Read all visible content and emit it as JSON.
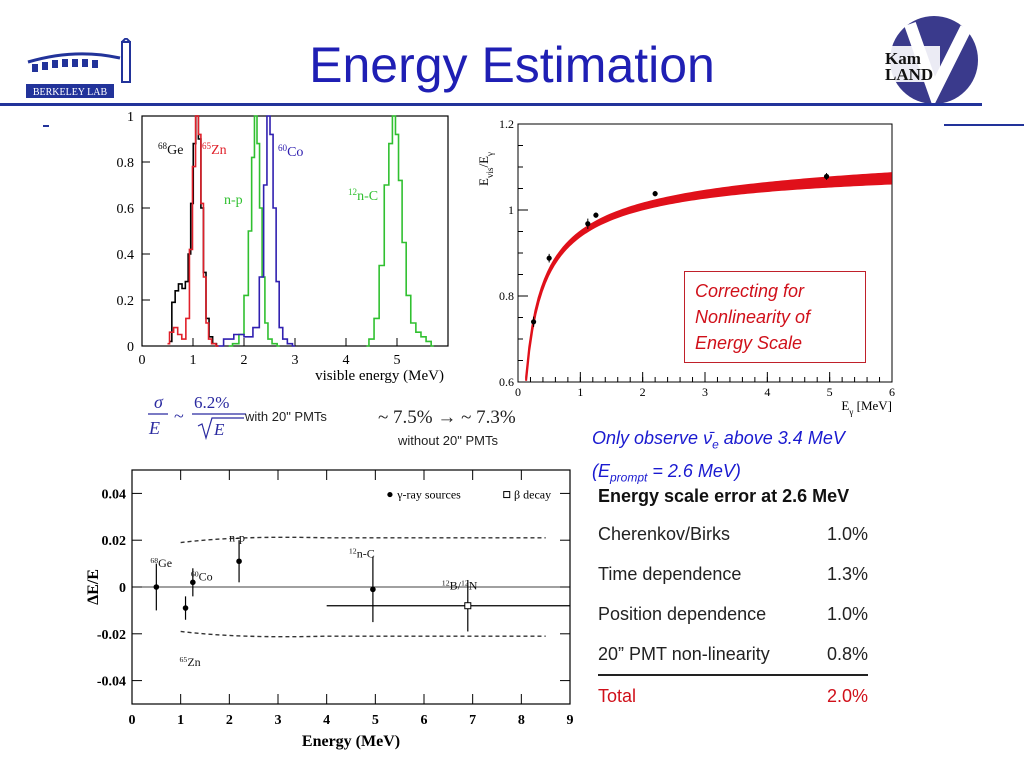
{
  "slide": {
    "title": "Energy Estimation",
    "logo_left_text": "BERKELEY LAB",
    "logo_right_line1": "Kam",
    "logo_right_line2": "LAND"
  },
  "chart_data": [
    {
      "type": "line",
      "xlabel": "visible energy (MeV)",
      "ylabel": "",
      "xlim": [
        0,
        6
      ],
      "ylim": [
        0,
        1
      ],
      "x_ticks": [
        "0",
        "1",
        "2",
        "3",
        "4",
        "5"
      ],
      "y_ticks": [
        "0",
        "0.2",
        "0.4",
        "0.6",
        "0.8",
        "1"
      ],
      "series": [
        {
          "name": "68Ge",
          "label_main": "Ge",
          "label_sup": "68",
          "color": "#000000",
          "x": [
            0.55,
            0.62,
            0.68,
            0.75,
            0.82,
            0.88,
            0.93,
            0.98,
            1.03,
            1.08,
            1.13,
            1.18,
            1.23,
            1.28,
            1.35,
            1.42,
            1.5
          ],
          "y": [
            0.02,
            0.19,
            0.24,
            0.27,
            0.25,
            0.28,
            0.4,
            0.62,
            0.88,
            1.0,
            0.9,
            0.6,
            0.32,
            0.12,
            0.04,
            0.01,
            0.0
          ]
        },
        {
          "name": "65Zn",
          "label_main": "Zn",
          "label_sup": "65",
          "color": "#e0202a",
          "x": [
            0.5,
            0.58,
            0.66,
            0.74,
            0.82,
            0.9,
            0.96,
            1.02,
            1.08,
            1.13,
            1.18,
            1.23,
            1.28,
            1.33,
            1.4,
            1.5
          ],
          "y": [
            0.01,
            0.06,
            0.08,
            0.05,
            0.03,
            0.12,
            0.42,
            0.78,
            1.0,
            0.92,
            0.62,
            0.3,
            0.1,
            0.03,
            0.01,
            0.0
          ]
        },
        {
          "name": "n-p",
          "label_main": "n-p",
          "label_sup": "",
          "color": "#30c030",
          "x": [
            1.7,
            1.85,
            1.95,
            2.05,
            2.12,
            2.18,
            2.23,
            2.28,
            2.33,
            2.38,
            2.44,
            2.5,
            2.6,
            2.7
          ],
          "y": [
            0.0,
            0.01,
            0.05,
            0.22,
            0.5,
            0.82,
            1.0,
            0.88,
            0.6,
            0.3,
            0.1,
            0.03,
            0.01,
            0.0
          ]
        },
        {
          "name": "60Co",
          "label_main": "Co",
          "label_sup": "60",
          "color": "#3020b0",
          "x": [
            1.5,
            1.7,
            1.9,
            2.1,
            2.25,
            2.35,
            2.42,
            2.48,
            2.54,
            2.6,
            2.66,
            2.72,
            2.8,
            2.9,
            3.0
          ],
          "y": [
            0.0,
            0.03,
            0.05,
            0.04,
            0.08,
            0.3,
            0.7,
            1.0,
            0.92,
            0.6,
            0.28,
            0.08,
            0.03,
            0.01,
            0.0
          ]
        },
        {
          "name": "n-12C",
          "label_main": "n-",
          "label_sup": "12",
          "label_end": "C",
          "color": "#30c030",
          "x": [
            4.4,
            4.5,
            4.6,
            4.7,
            4.8,
            4.88,
            4.94,
            5.0,
            5.06,
            5.14,
            5.22,
            5.32,
            5.42,
            5.52,
            5.62,
            5.72
          ],
          "y": [
            0.0,
            0.03,
            0.12,
            0.35,
            0.7,
            0.88,
            1.0,
            0.92,
            0.72,
            0.45,
            0.22,
            0.1,
            0.06,
            0.04,
            0.02,
            0.0
          ]
        }
      ]
    },
    {
      "type": "scatter",
      "xlabel_main": "E",
      "xlabel_sub": "γ",
      "xlabel_unit": "[MeV]",
      "ylabel_main": "E",
      "ylabel_sub1": "vis",
      "ylabel_mid": "/E",
      "ylabel_sub2": "γ",
      "xlim": [
        0,
        6
      ],
      "ylim": [
        0.6,
        1.2
      ],
      "x_ticks": [
        "0",
        "1",
        "2",
        "3",
        "4",
        "5",
        "6"
      ],
      "y_ticks": [
        "0.6",
        "0.8",
        "1",
        "1.2"
      ],
      "points": [
        {
          "x": 0.25,
          "y": 0.74,
          "err": 0.012
        },
        {
          "x": 0.5,
          "y": 0.888,
          "err": 0.01
        },
        {
          "x": 1.12,
          "y": 0.968,
          "err": 0.012
        },
        {
          "x": 1.25,
          "y": 0.988,
          "err": 0.006
        },
        {
          "x": 2.2,
          "y": 1.038,
          "err": 0.006
        },
        {
          "x": 4.95,
          "y": 1.078,
          "err": 0.008
        }
      ],
      "fit_color": "#e0101a"
    },
    {
      "type": "scatter",
      "xlabel": "Energy (MeV)",
      "ylabel": "ΔE/E",
      "xlim": [
        0,
        9
      ],
      "ylim": [
        -0.05,
        0.05
      ],
      "x_ticks": [
        "0",
        "1",
        "2",
        "3",
        "4",
        "5",
        "6",
        "7",
        "8",
        "9"
      ],
      "y_ticks": [
        "0.04",
        "0.02",
        "0",
        "-0.02",
        "-0.04"
      ],
      "legend": {
        "gamma": "γ-ray sources",
        "beta": "β decay",
        "position": "top-right"
      },
      "band": {
        "x_start": 1.0,
        "x_end": 8.5,
        "upper": 0.021,
        "lower": -0.021
      },
      "points": [
        {
          "label_main": "Ge",
          "label_sup": "68",
          "x": 0.5,
          "y": 0.0,
          "err": 0.01,
          "marker": "filled"
        },
        {
          "label_main": "Zn",
          "label_sup": "65",
          "x": 1.1,
          "y": -0.009,
          "err": 0.005,
          "marker": "filled"
        },
        {
          "label_main": "Co",
          "label_sup": "60",
          "x": 1.25,
          "y": 0.002,
          "err": 0.006,
          "marker": "filled"
        },
        {
          "label_main": "n-p",
          "label_sup": "",
          "x": 2.2,
          "y": 0.011,
          "err": 0.009,
          "marker": "filled"
        },
        {
          "label_main": "n-",
          "label_sup": "12",
          "label_end": "C",
          "x": 4.95,
          "y": -0.001,
          "err": 0.014,
          "marker": "filled"
        },
        {
          "label_main": "B/",
          "label_sup": "12",
          "label_sup2": "12",
          "label_end": "N",
          "x": 6.9,
          "y": -0.008,
          "err": 0.011,
          "xerr_low": 2.9,
          "xerr_high": 2.1,
          "marker": "open"
        }
      ]
    }
  ],
  "annotations": {
    "nonlinearity_box": [
      "Correcting for",
      "Nonlinearity of",
      "Energy Scale"
    ],
    "observe_line1_pre": "Only observe ",
    "observe_nu": "ν̄",
    "observe_nu_sub": "e",
    "observe_line1_post": " above 3.4 MeV",
    "observe_line2_pre": "(E",
    "observe_line2_sub": "prompt",
    "observe_line2_post": " = 2.6 MeV)",
    "resolution_with_value": "6.2%",
    "resolution_with_label": "with 20\" PMTs",
    "resolution_without_value": "~ 7.5% → ~ 7.3%",
    "resolution_without_label": "without 20\" PMTs"
  },
  "error_table": {
    "title": "Energy scale error at 2.6 MeV",
    "rows": [
      {
        "label": "Cherenkov/Birks",
        "value": "1.0%"
      },
      {
        "label": "Time dependence",
        "value": "1.3%"
      },
      {
        "label": "Position dependence",
        "value": "1.0%"
      },
      {
        "label": "20” PMT non-linearity",
        "value": "0.8%"
      }
    ],
    "total_label": "Total",
    "total_value": "2.0%"
  }
}
